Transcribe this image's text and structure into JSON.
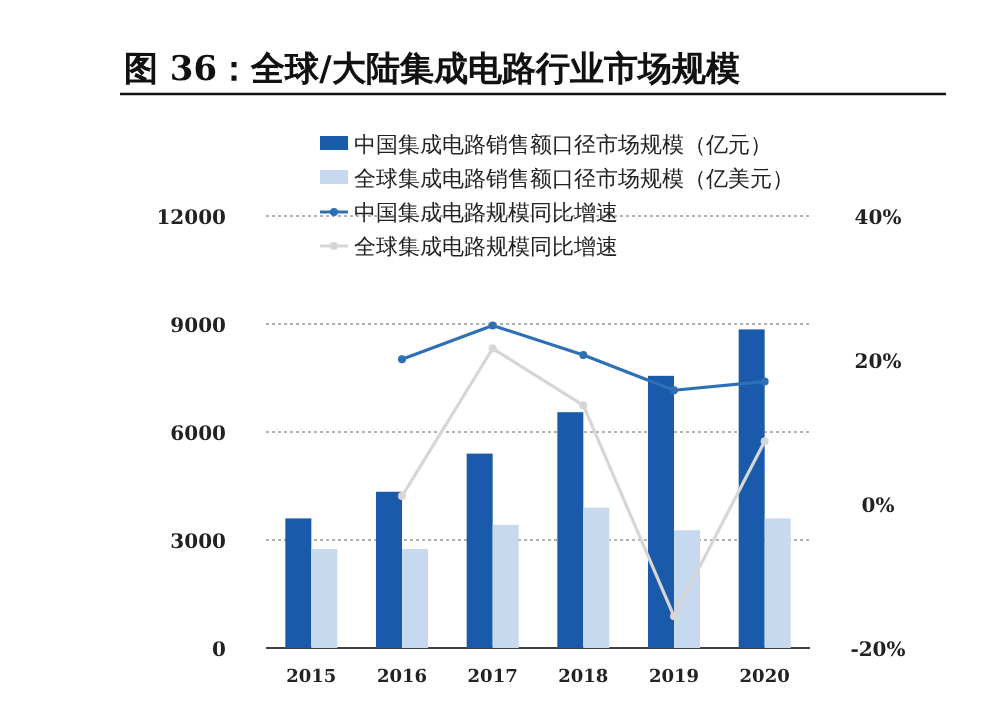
{
  "chart_data": {
    "type": "bar",
    "title": "图 36：全球/大陆集成电路行业市场规模",
    "categories": [
      "2015",
      "2016",
      "2017",
      "2018",
      "2019",
      "2020"
    ],
    "series": [
      {
        "name": "中国集成电路销售额口径市场规模（亿元）",
        "color": "#1a5aab",
        "values": [
          3600,
          4340,
          5400,
          6550,
          7560,
          8850
        ]
      },
      {
        "name": "全球集成电路销售额口径市场规模（亿美元）",
        "color": "#c6d9ef",
        "values": [
          2750,
          2750,
          3420,
          3900,
          3270,
          3600
        ]
      },
      {
        "name": "中国集成电路规模同比增速",
        "type": "line",
        "axis": "y2",
        "color": "#2f6fb5",
        "values": [
          null,
          20.1,
          24.8,
          20.7,
          15.8,
          17.0
        ]
      },
      {
        "name": "全球集成电路规模同比增速",
        "type": "line",
        "axis": "y2",
        "color": "#d6d6d6",
        "values": [
          null,
          1.1,
          21.6,
          13.7,
          -15.6,
          8.7
        ]
      }
    ],
    "ylim": [
      0,
      12000
    ],
    "yticks": [
      0,
      3000,
      6000,
      9000,
      12000
    ],
    "y2lim": [
      -20,
      40
    ],
    "y2ticks": [
      {
        "value": -20,
        "label": "-20%"
      },
      {
        "value": 0,
        "label": "0%"
      },
      {
        "value": 20,
        "label": "20%"
      },
      {
        "value": 40,
        "label": "40%"
      }
    ],
    "grid": "y",
    "legend": "top",
    "marker": "circle"
  }
}
